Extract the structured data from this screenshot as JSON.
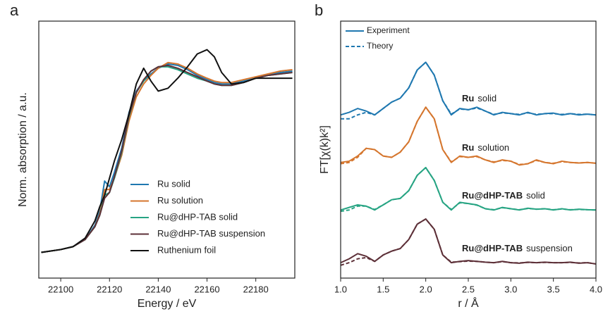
{
  "chart_data": [
    {
      "type": "line",
      "panel_label": "a",
      "x_label": "Energy / eV",
      "y_label": "Norm. absorption / a.u.",
      "xlim": [
        22091,
        22196
      ],
      "ylim": [
        0,
        1.8
      ],
      "xticks": [
        22100,
        22120,
        22140,
        22160,
        22180
      ],
      "x": [
        22092,
        22100,
        22105,
        22110,
        22114,
        22116,
        22118,
        22120,
        22122,
        22125,
        22128,
        22131,
        22134,
        22137,
        22140,
        22144,
        22148,
        22152,
        22156,
        22160,
        22163,
        22166,
        22170,
        22175,
        22180,
        22185,
        22190,
        22195
      ],
      "legend_position": "lower-right",
      "series": [
        {
          "name": "Ru solid",
          "color": "#1f78b0",
          "values": [
            0.18,
            0.2,
            0.22,
            0.27,
            0.37,
            0.47,
            0.68,
            0.64,
            0.74,
            0.91,
            1.16,
            1.31,
            1.38,
            1.43,
            1.47,
            1.5,
            1.49,
            1.46,
            1.42,
            1.39,
            1.37,
            1.36,
            1.36,
            1.38,
            1.4,
            1.42,
            1.44,
            1.45
          ]
        },
        {
          "name": "Ru solution",
          "color": "#d5762e",
          "values": [
            0.18,
            0.2,
            0.22,
            0.27,
            0.36,
            0.45,
            0.62,
            0.62,
            0.7,
            0.86,
            1.1,
            1.27,
            1.36,
            1.42,
            1.47,
            1.51,
            1.5,
            1.47,
            1.43,
            1.4,
            1.38,
            1.37,
            1.37,
            1.39,
            1.41,
            1.43,
            1.45,
            1.46
          ]
        },
        {
          "name": "Ru@dHP-TAB solid",
          "color": "#27a483",
          "values": [
            0.18,
            0.2,
            0.22,
            0.27,
            0.36,
            0.44,
            0.58,
            0.6,
            0.7,
            0.88,
            1.13,
            1.3,
            1.38,
            1.45,
            1.48,
            1.48,
            1.46,
            1.43,
            1.4,
            1.38,
            1.36,
            1.35,
            1.35,
            1.37,
            1.4,
            1.42,
            1.43,
            1.44
          ]
        },
        {
          "name": "Ru@dHP-TAB suspension",
          "color": "#5d3038",
          "values": [
            0.18,
            0.2,
            0.22,
            0.27,
            0.36,
            0.44,
            0.56,
            0.6,
            0.71,
            0.89,
            1.14,
            1.3,
            1.39,
            1.45,
            1.48,
            1.49,
            1.47,
            1.44,
            1.41,
            1.38,
            1.36,
            1.35,
            1.35,
            1.37,
            1.4,
            1.42,
            1.43,
            1.44
          ]
        },
        {
          "name": "Ruthenium foil",
          "color": "#111111",
          "values": [
            0.18,
            0.2,
            0.22,
            0.28,
            0.4,
            0.5,
            0.58,
            0.7,
            0.82,
            0.97,
            1.15,
            1.36,
            1.47,
            1.38,
            1.31,
            1.33,
            1.4,
            1.48,
            1.57,
            1.6,
            1.55,
            1.44,
            1.36,
            1.37,
            1.4,
            1.4,
            1.4,
            1.4
          ]
        }
      ]
    },
    {
      "type": "line",
      "panel_label": "b",
      "x_label": "r / Å",
      "y_label": "FT[χ(k)k²]",
      "xlim": [
        1.0,
        4.0
      ],
      "ylim": [
        0,
        10
      ],
      "xticks": [
        {
          "value": 1,
          "label": "1.0"
        },
        {
          "value": 1.5,
          "label": "1.5"
        },
        {
          "value": 2,
          "label": "2.0"
        },
        {
          "value": 2.5,
          "label": "2.5"
        },
        {
          "value": 3,
          "label": "3.0"
        },
        {
          "value": 3.5,
          "label": "3.5"
        },
        {
          "value": 4,
          "label": "4.0"
        }
      ],
      "x": [
        1.0,
        1.1,
        1.2,
        1.3,
        1.4,
        1.5,
        1.6,
        1.7,
        1.8,
        1.9,
        2.0,
        2.1,
        2.2,
        2.3,
        2.4,
        2.5,
        2.6,
        2.7,
        2.8,
        2.9,
        3.0,
        3.1,
        3.2,
        3.3,
        3.4,
        3.5,
        3.6,
        3.7,
        3.8,
        3.9,
        4.0
      ],
      "legend_position": "upper-left",
      "legend": [
        {
          "name": "Experiment",
          "color": "#1f78b0",
          "dash": false
        },
        {
          "name": "Theory",
          "color": "#1f78b0",
          "dash": true
        }
      ],
      "annotations": [
        {
          "bold": "Ru",
          "rest": "solid"
        },
        {
          "bold": "Ru",
          "rest": "solution"
        },
        {
          "bold": "Ru@dHP-TAB",
          "rest": "solid"
        },
        {
          "bold": "Ru@dHP-TAB",
          "rest": "suspension"
        }
      ],
      "series": [
        {
          "color": "#1f78b0",
          "dash": false,
          "values": [
            6.35,
            6.45,
            6.6,
            6.5,
            6.35,
            6.6,
            6.85,
            7.0,
            7.4,
            8.1,
            8.4,
            7.9,
            6.9,
            6.35,
            6.6,
            6.55,
            6.65,
            6.5,
            6.35,
            6.45,
            6.4,
            6.35,
            6.45,
            6.35,
            6.4,
            6.42,
            6.35,
            6.4,
            6.35,
            6.38,
            6.35
          ]
        },
        {
          "color": "#1f78b0",
          "dash": true,
          "values": [
            6.2,
            6.2,
            6.35,
            6.45,
            6.35,
            6.6,
            6.85,
            7.0,
            7.4,
            8.1,
            8.4,
            7.9,
            6.9,
            6.38,
            6.58,
            6.55,
            6.62,
            6.5,
            6.37,
            6.43,
            6.4,
            6.37,
            6.43,
            6.37,
            6.4,
            6.4,
            6.37,
            6.4,
            6.37,
            6.38,
            6.35
          ]
        },
        {
          "color": "#d5762e",
          "dash": false,
          "values": [
            4.5,
            4.55,
            4.75,
            5.05,
            5.0,
            4.75,
            4.7,
            4.9,
            5.3,
            6.1,
            6.65,
            6.2,
            5.0,
            4.5,
            4.75,
            4.7,
            4.75,
            4.6,
            4.5,
            4.6,
            4.55,
            4.4,
            4.45,
            4.6,
            4.5,
            4.45,
            4.55,
            4.5,
            4.48,
            4.5,
            4.47
          ]
        },
        {
          "color": "#d5762e",
          "dash": true,
          "values": [
            4.45,
            4.5,
            4.7,
            5.05,
            5.0,
            4.75,
            4.7,
            4.9,
            5.3,
            6.1,
            6.65,
            6.2,
            5.0,
            4.52,
            4.73,
            4.7,
            4.73,
            4.6,
            4.52,
            4.58,
            4.55,
            4.42,
            4.45,
            4.58,
            4.5,
            4.47,
            4.53,
            4.5,
            4.48,
            4.5,
            4.47
          ]
        },
        {
          "color": "#27a483",
          "dash": false,
          "values": [
            2.65,
            2.75,
            2.85,
            2.8,
            2.65,
            2.85,
            3.05,
            3.1,
            3.4,
            4.0,
            4.3,
            3.8,
            2.95,
            2.65,
            2.95,
            2.9,
            2.85,
            2.7,
            2.65,
            2.75,
            2.7,
            2.65,
            2.72,
            2.68,
            2.7,
            2.65,
            2.7,
            2.65,
            2.68,
            2.66,
            2.65
          ]
        },
        {
          "color": "#27a483",
          "dash": true,
          "values": [
            2.6,
            2.65,
            2.8,
            2.8,
            2.67,
            2.85,
            3.05,
            3.1,
            3.4,
            4.0,
            4.3,
            3.8,
            2.95,
            2.67,
            2.93,
            2.9,
            2.84,
            2.7,
            2.66,
            2.74,
            2.7,
            2.66,
            2.71,
            2.68,
            2.7,
            2.66,
            2.69,
            2.66,
            2.67,
            2.66,
            2.65
          ]
        },
        {
          "color": "#5d3038",
          "dash": false,
          "values": [
            0.6,
            0.75,
            0.95,
            0.85,
            0.65,
            0.9,
            1.05,
            1.15,
            1.5,
            2.1,
            2.3,
            1.9,
            0.9,
            0.6,
            0.65,
            0.68,
            0.65,
            0.62,
            0.6,
            0.65,
            0.6,
            0.58,
            0.62,
            0.6,
            0.62,
            0.6,
            0.6,
            0.62,
            0.58,
            0.6,
            0.55
          ]
        },
        {
          "color": "#5d3038",
          "dash": true,
          "values": [
            0.5,
            0.6,
            0.75,
            0.8,
            0.65,
            0.9,
            1.05,
            1.15,
            1.5,
            2.1,
            2.3,
            1.9,
            0.9,
            0.62,
            0.64,
            0.66,
            0.65,
            0.62,
            0.6,
            0.64,
            0.6,
            0.59,
            0.61,
            0.6,
            0.61,
            0.6,
            0.6,
            0.61,
            0.59,
            0.6,
            0.55
          ]
        }
      ]
    }
  ]
}
